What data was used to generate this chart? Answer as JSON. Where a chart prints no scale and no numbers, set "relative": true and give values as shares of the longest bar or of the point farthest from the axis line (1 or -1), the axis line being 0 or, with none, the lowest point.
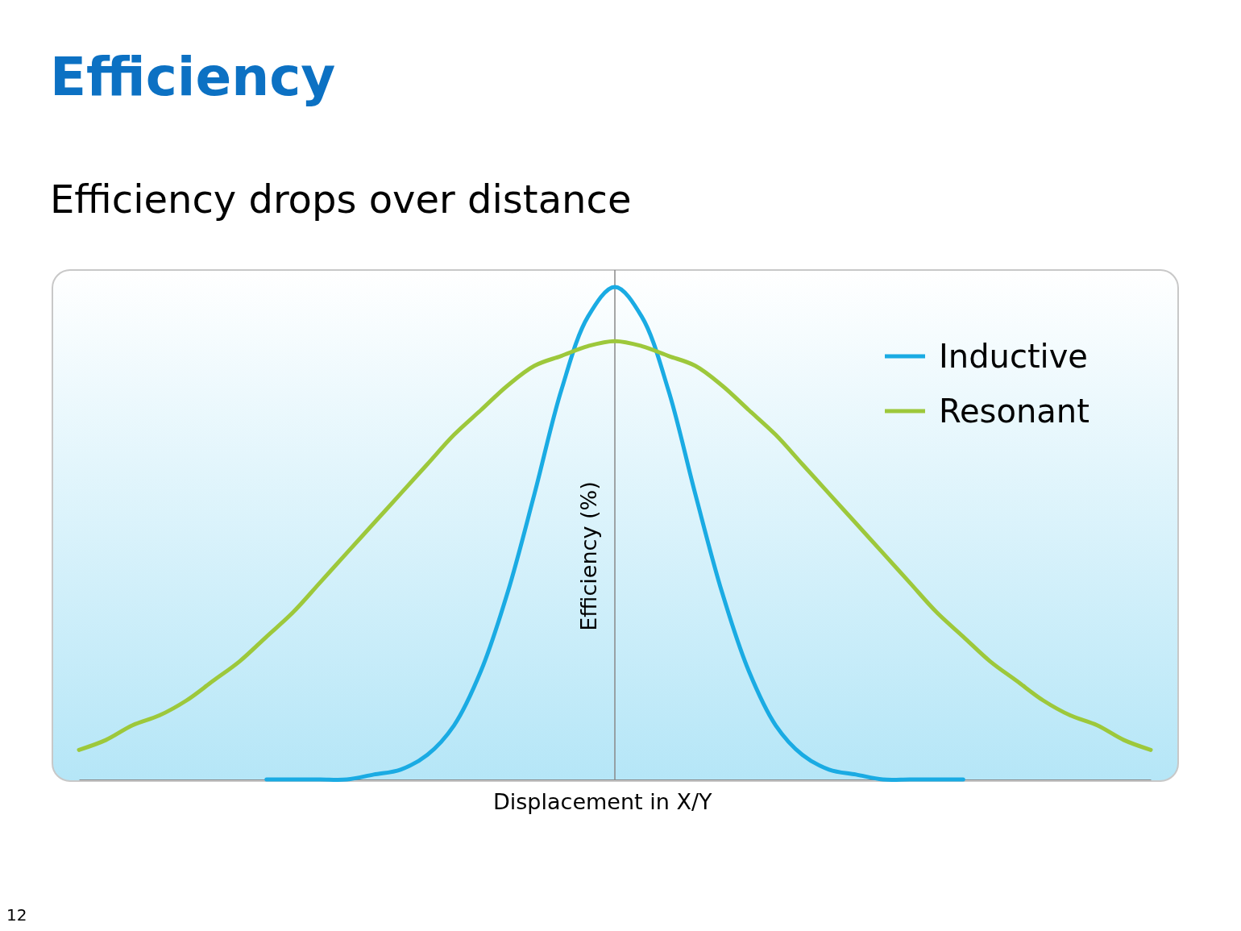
{
  "chart_data": {
    "type": "line",
    "title": "Efficiency",
    "subtitle": "Efficiency drops over distance",
    "xlabel": "Displacement in X/Y",
    "ylabel": "Efficiency (%)",
    "relative": true,
    "legend": "top right",
    "annotations": [
      "12"
    ],
    "categories": [
      null,
      null,
      null,
      null,
      null,
      null,
      null,
      null,
      null,
      null,
      null,
      null,
      null,
      null,
      null,
      null,
      null,
      null,
      null,
      null,
      null,
      null,
      null,
      null,
      null,
      null,
      null,
      null,
      null,
      null,
      null,
      null,
      null,
      null,
      null,
      null,
      null,
      null,
      null,
      null,
      null
    ],
    "series": [
      {
        "name": "Inductive",
        "color": "#1aabe3",
        "values": [
          null,
          null,
          null,
          null,
          null,
          null,
          null,
          0,
          0,
          0,
          0,
          0.01,
          0.02,
          0.05,
          0.11,
          0.22,
          0.38,
          0.58,
          0.79,
          0.94,
          1,
          0.94,
          0.79,
          0.58,
          0.38,
          0.22,
          0.11,
          0.05,
          0.02,
          0.01,
          0,
          0,
          0,
          0,
          null,
          null,
          null,
          null,
          null,
          null,
          null
        ]
      },
      {
        "name": "Resonant",
        "color": "#9dc83b",
        "values": [
          0.06,
          0.08,
          0.11,
          0.13,
          0.16,
          0.2,
          0.24,
          0.29,
          0.34,
          0.4,
          0.46,
          0.52,
          0.58,
          0.64,
          0.7,
          0.75,
          0.8,
          0.84,
          0.86,
          0.88,
          0.89,
          0.88,
          0.86,
          0.84,
          0.8,
          0.75,
          0.7,
          0.64,
          0.58,
          0.52,
          0.46,
          0.4,
          0.34,
          0.29,
          0.24,
          0.2,
          0.16,
          0.13,
          0.11,
          0.08,
          0.06
        ]
      }
    ]
  }
}
